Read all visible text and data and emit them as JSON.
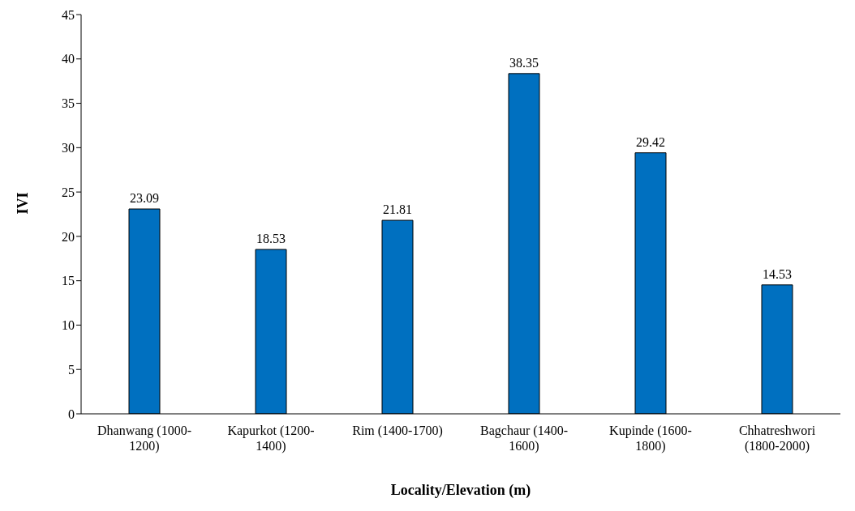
{
  "chart_data": {
    "type": "bar",
    "xlabel": "Locality/Elevation (m)",
    "ylabel": "IVI",
    "categories": [
      "Dhanwang (1000-1200)",
      "Kapurkot (1200-1400)",
      "Rim (1400-1700)",
      "Bagchaur (1400-1600)",
      "Kupinde (1600-1800)",
      "Chhatreshwori (1800-2000)"
    ],
    "values": [
      23.09,
      18.53,
      21.81,
      38.35,
      29.42,
      14.53
    ],
    "color": "#0070c0",
    "ylim": [
      0,
      45
    ],
    "yticks": [
      0,
      5,
      10,
      15,
      20,
      25,
      30,
      35,
      40,
      45
    ],
    "grid": false,
    "legend": false,
    "data_labels": true
  }
}
